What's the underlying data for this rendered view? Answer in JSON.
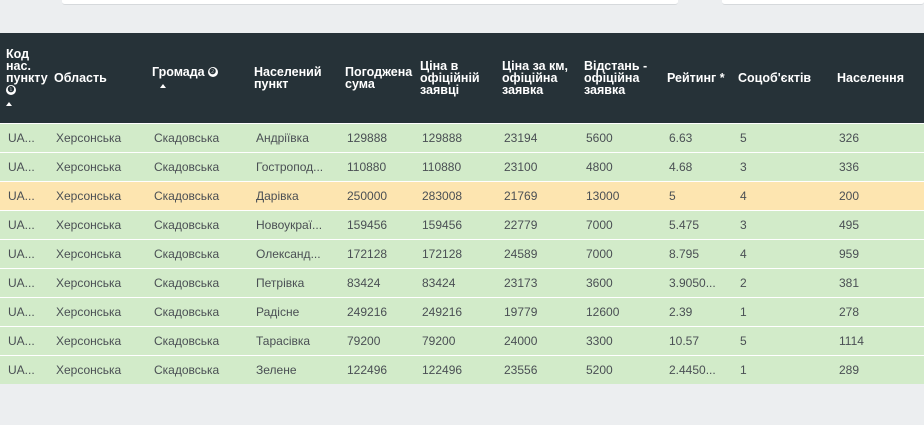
{
  "columns": [
    {
      "label": "Код нас. пункту",
      "info_icon": "❶",
      "sort_icon": "sort-up-icon"
    },
    {
      "label": "Область"
    },
    {
      "label": "Громада",
      "info_icon": "❷",
      "sort_icon": "sort-up-icon"
    },
    {
      "label": "Населений пункт"
    },
    {
      "label": "Погоджена сума"
    },
    {
      "label": "Ціна в офіційній заявці"
    },
    {
      "label": "Ціна за км, офіційна заявка"
    },
    {
      "label": "Відстань - офіційна заявка"
    },
    {
      "label": "Рейтинг *"
    },
    {
      "label": "Соцоб'єктів"
    },
    {
      "label": "Населення"
    }
  ],
  "rows": [
    {
      "status": "green",
      "cells": [
        "UA...",
        "Херсонська",
        "Скадовська",
        "Андріївка",
        "129888",
        "129888",
        "23194",
        "5600",
        "6.63",
        "5",
        "326"
      ]
    },
    {
      "status": "green",
      "cells": [
        "UA...",
        "Херсонська",
        "Скадовська",
        "Гостропод...",
        "110880",
        "110880",
        "23100",
        "4800",
        "4.68",
        "3",
        "336"
      ]
    },
    {
      "status": "yellow",
      "cells": [
        "UA...",
        "Херсонська",
        "Скадовська",
        "Дарівка",
        "250000",
        "283008",
        "21769",
        "13000",
        "5",
        "4",
        "200"
      ]
    },
    {
      "status": "green",
      "cells": [
        "UA...",
        "Херсонська",
        "Скадовська",
        "Новоукраї...",
        "159456",
        "159456",
        "22779",
        "7000",
        "5.475",
        "3",
        "495"
      ]
    },
    {
      "status": "green",
      "cells": [
        "UA...",
        "Херсонська",
        "Скадовська",
        "Олександ...",
        "172128",
        "172128",
        "24589",
        "7000",
        "8.795",
        "4",
        "959"
      ]
    },
    {
      "status": "green",
      "cells": [
        "UA...",
        "Херсонська",
        "Скадовська",
        "Петрівка",
        "83424",
        "83424",
        "23173",
        "3600",
        "3.9050...",
        "2",
        "381"
      ]
    },
    {
      "status": "green",
      "cells": [
        "UA...",
        "Херсонська",
        "Скадовська",
        "Радісне",
        "249216",
        "249216",
        "19779",
        "12600",
        "2.39",
        "1",
        "278"
      ]
    },
    {
      "status": "green",
      "cells": [
        "UA...",
        "Херсонська",
        "Скадовська",
        "Тарасівка",
        "79200",
        "79200",
        "24000",
        "3300",
        "10.57",
        "5",
        "1114"
      ]
    },
    {
      "status": "green",
      "cells": [
        "UA...",
        "Херсонська",
        "Скадовська",
        "Зелене",
        "122496",
        "122496",
        "23556",
        "5200",
        "2.4450...",
        "1",
        "289"
      ]
    }
  ],
  "colors": {
    "header_bg": "#263238",
    "row_green": "#d2ebc9",
    "row_yellow": "#fde5b0",
    "page_bg": "#eceef0"
  }
}
